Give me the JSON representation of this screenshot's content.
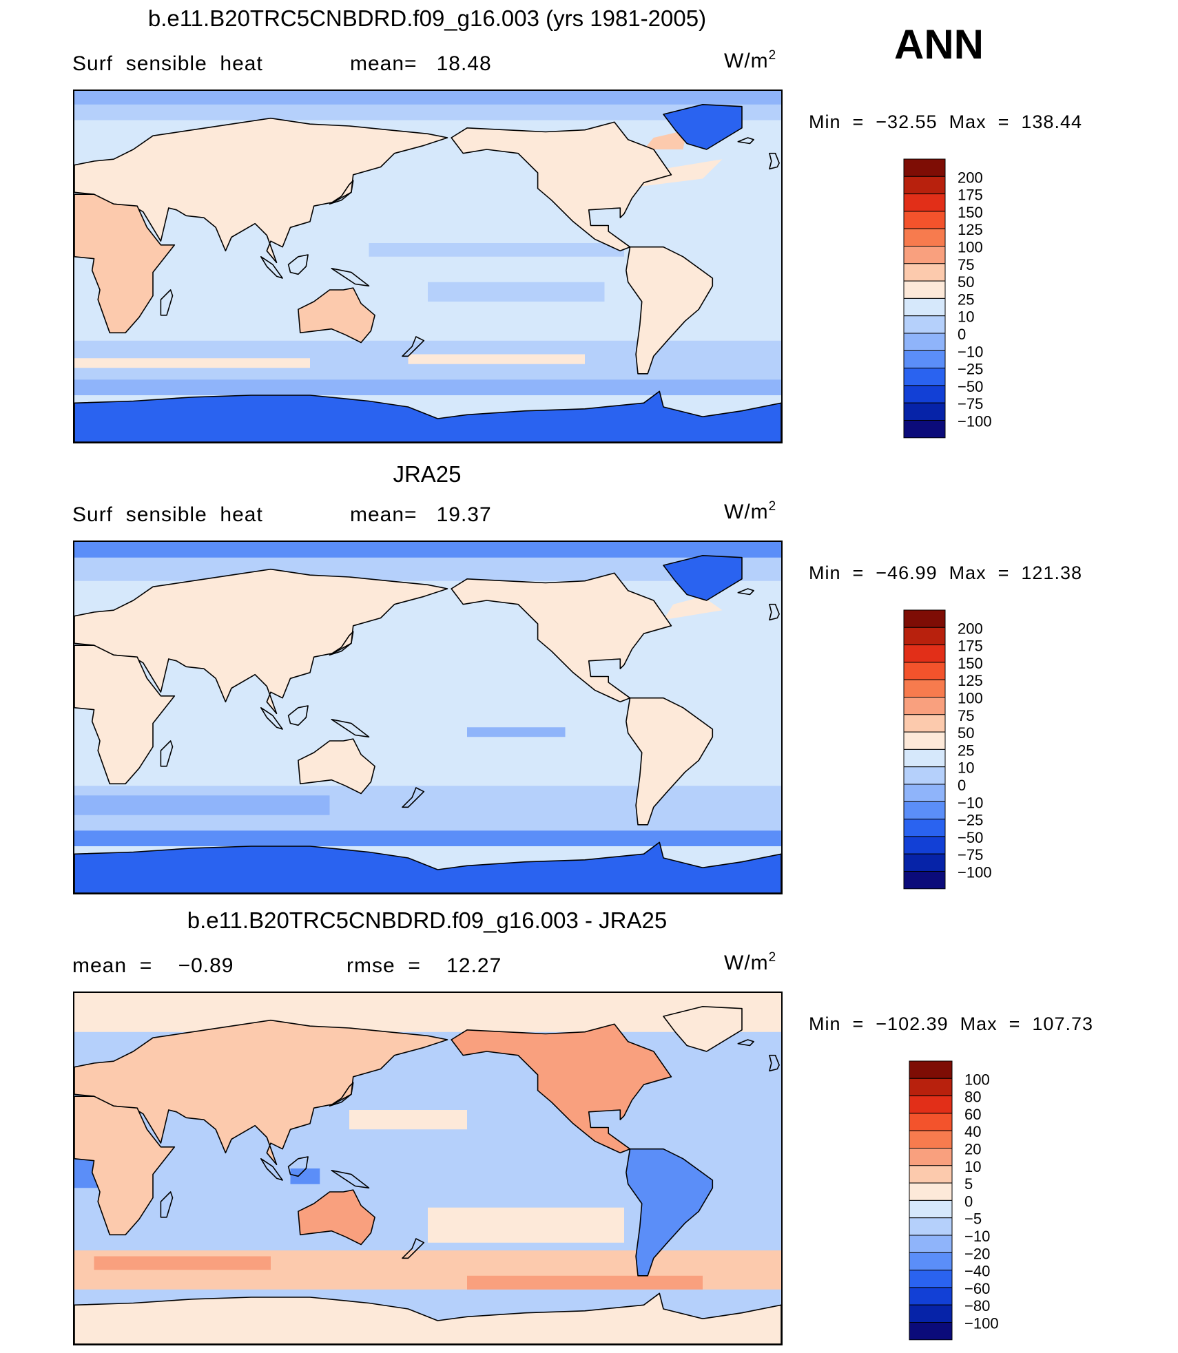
{
  "header": {
    "season_label": "ANN"
  },
  "colors": {
    "nv": "#0b0b7a",
    "n5": "#0623a8",
    "n4": "#1240d6",
    "n3": "#2a63f0",
    "n2": "#5b8ef8",
    "n1": "#8fb4fa",
    "n0": "#b5d0fb",
    "z": "#d6e8fb",
    "c1": "#fde9d9",
    "c2": "#fccaad",
    "c3": "#f9a07e",
    "c4": "#f77b4e",
    "c5": "#f3532c",
    "c6": "#e22f18",
    "c7": "#b8210d",
    "c8": "#7e0d05",
    "coast": "#000000"
  },
  "panels": [
    {
      "title": "b.e11.B20TRC5CNBDRD.f09_g16.003 (yrs 1981-2005)",
      "left_label": "Surf  sensible  heat",
      "middle_label": "mean=   18.48",
      "units": "W/m",
      "units_sup": "2",
      "minmax": "Min  =  −32.55  Max  =  138.44",
      "colorbar_labels": [
        "200",
        "175",
        "150",
        "125",
        "100",
        "75",
        "50",
        "25",
        "10",
        "0",
        "−10",
        "−25",
        "−50",
        "−75",
        "−100"
      ]
    },
    {
      "title": "JRA25",
      "left_label": "Surf  sensible  heat",
      "middle_label": "mean=   19.37",
      "units": "W/m",
      "units_sup": "2",
      "minmax": "Min  =  −46.99  Max  =  121.38",
      "colorbar_labels": [
        "200",
        "175",
        "150",
        "125",
        "100",
        "75",
        "50",
        "25",
        "10",
        "0",
        "−10",
        "−25",
        "−50",
        "−75",
        "−100"
      ]
    },
    {
      "title": "b.e11.B20TRC5CNBDRD.f09_g16.003 - JRA25",
      "left_label": "mean  =    −0.89",
      "middle_label": "rmse  =    12.27",
      "units": "W/m",
      "units_sup": "2",
      "minmax": "Min  =  −102.39  Max  =  107.73",
      "colorbar_labels": [
        "100",
        "80",
        "60",
        "40",
        "20",
        "10",
        "5",
        "0",
        "−5",
        "−10",
        "−20",
        "−40",
        "−60",
        "−80",
        "−100"
      ]
    }
  ]
}
